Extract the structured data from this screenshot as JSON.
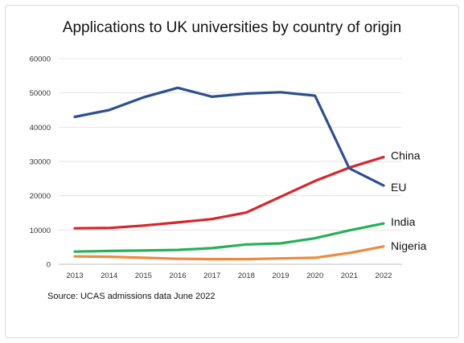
{
  "chart_data": {
    "type": "line",
    "title": "Applications to UK universities by country of origin",
    "source": "Source: UCAS admissions data June 2022",
    "xlabel": "",
    "ylabel": "",
    "ylim": [
      0,
      60000
    ],
    "y_ticks": [
      0,
      10000,
      20000,
      30000,
      40000,
      50000,
      60000
    ],
    "y_tick_labels": [
      "0",
      "10000",
      "20000",
      "30000",
      "40000",
      "50000",
      "60000"
    ],
    "categories": [
      "2013",
      "2014",
      "2015",
      "2016",
      "2017",
      "2018",
      "2019",
      "2020",
      "2021",
      "2022"
    ],
    "grid": true,
    "legend": "end-of-line labels",
    "series": [
      {
        "name": "China",
        "color": "#d7262b",
        "values": [
          10500,
          10600,
          11300,
          12200,
          13200,
          15100,
          19700,
          24300,
          28200,
          31300
        ]
      },
      {
        "name": "EU",
        "color": "#2c4f91",
        "values": [
          43000,
          45000,
          48700,
          51500,
          48900,
          49800,
          50200,
          49200,
          28000,
          23000
        ]
      },
      {
        "name": "India",
        "color": "#27b05a",
        "values": [
          3700,
          3900,
          4000,
          4200,
          4700,
          5800,
          6100,
          7600,
          9900,
          11900
        ]
      },
      {
        "name": "Nigeria",
        "color": "#ec8a3f",
        "values": [
          2300,
          2200,
          1900,
          1600,
          1500,
          1500,
          1700,
          1900,
          3300,
          5200
        ]
      }
    ]
  }
}
